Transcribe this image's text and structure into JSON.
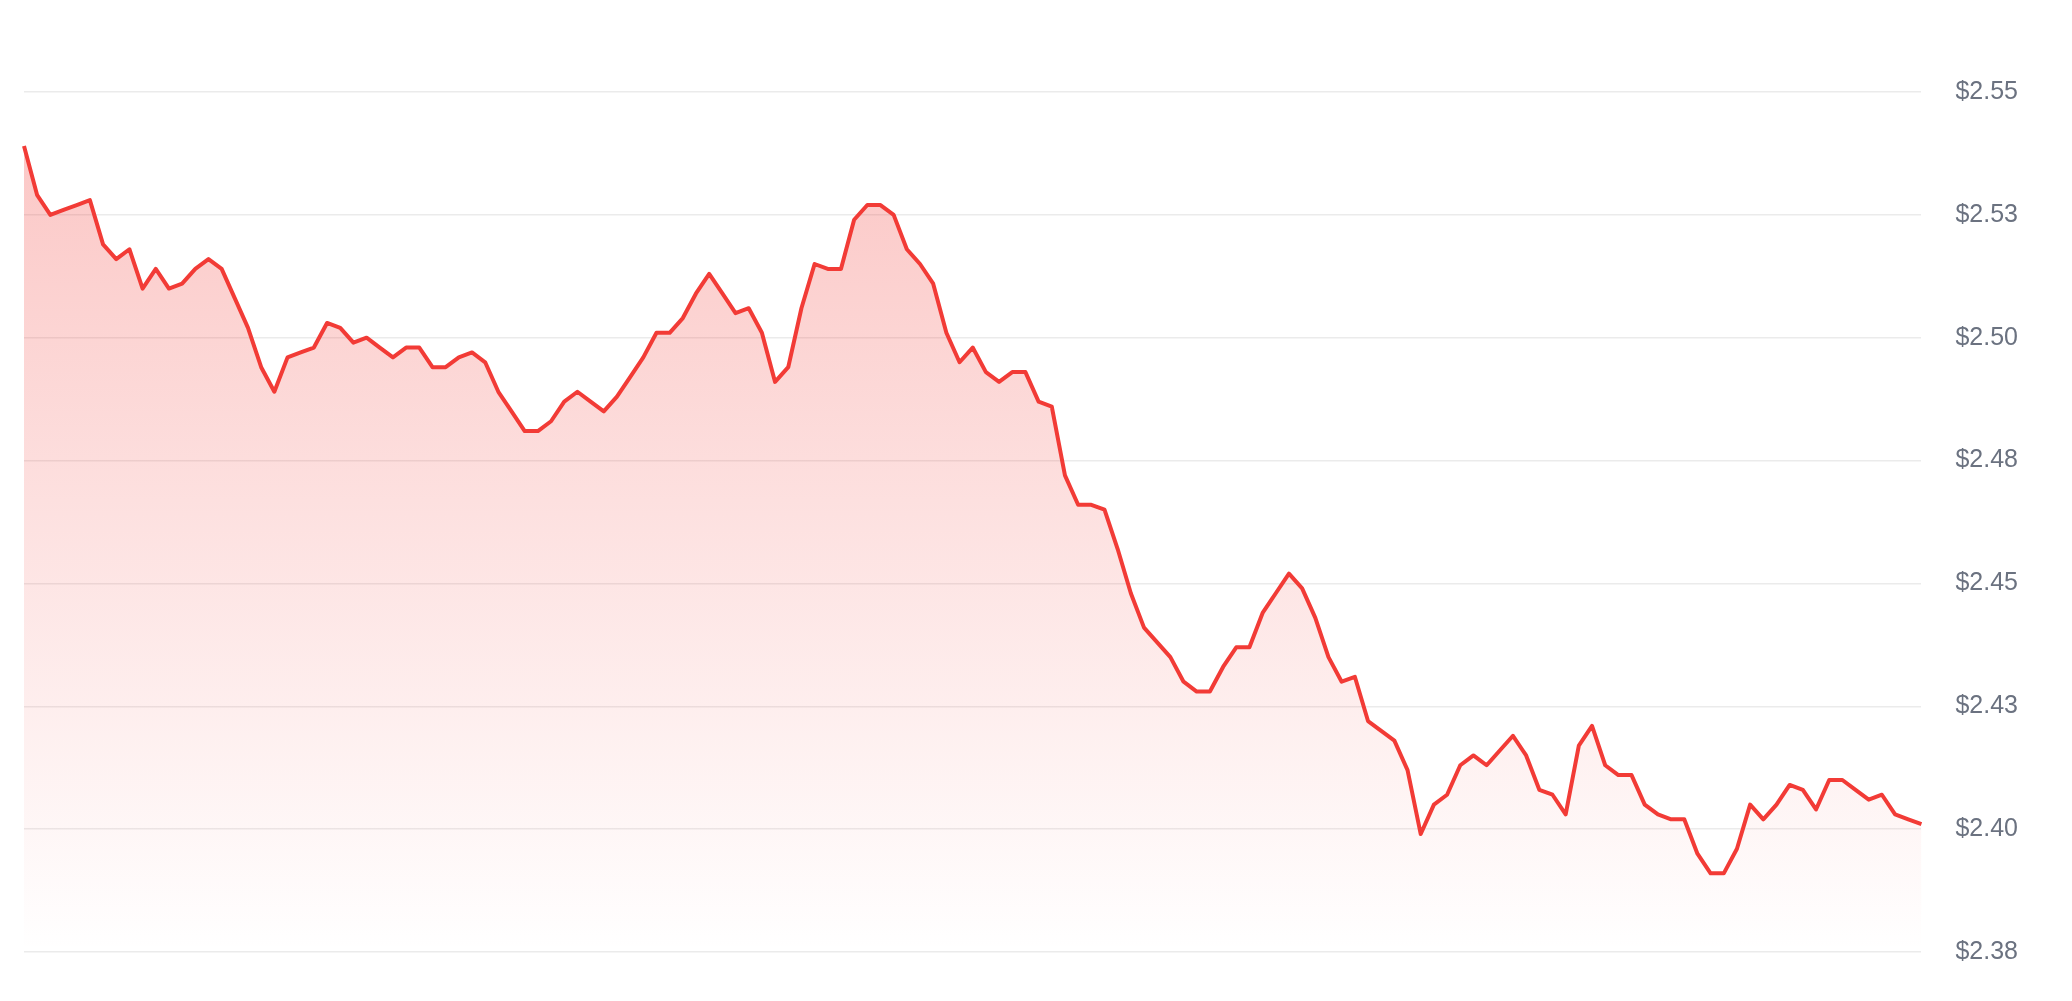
{
  "chart_data": {
    "type": "area",
    "categories": [
      null,
      null,
      null,
      null,
      null,
      null,
      null,
      null,
      null,
      null,
      null,
      null,
      null,
      null,
      null,
      null,
      null,
      null,
      null,
      null,
      null,
      null,
      null,
      null,
      null,
      null,
      null,
      null,
      null,
      null,
      null,
      null,
      null,
      null,
      null,
      null,
      null,
      null,
      null,
      null,
      null,
      null,
      null,
      null,
      null,
      null,
      null,
      null,
      null,
      null,
      null,
      null,
      null,
      null,
      null,
      null,
      null,
      null,
      null,
      null,
      null,
      null,
      null,
      null,
      null,
      null,
      null,
      null,
      null,
      null,
      null,
      null,
      null,
      null,
      null,
      null,
      null,
      null,
      null,
      null,
      null,
      null,
      null,
      null,
      null,
      null,
      null,
      null,
      null,
      null,
      null,
      null,
      null,
      null,
      null,
      null,
      null,
      null,
      null,
      null,
      null,
      null,
      null,
      null,
      null,
      null,
      null,
      null,
      null,
      null,
      null,
      null,
      null,
      null,
      null,
      null,
      null,
      null,
      null,
      null,
      null,
      null,
      null,
      null,
      null,
      null,
      null,
      null,
      null,
      null,
      null,
      null,
      null,
      null,
      null,
      null,
      null,
      null,
      null,
      null,
      null,
      null,
      null,
      null,
      null
    ],
    "series": [
      {
        "color": "#f23b36",
        "values": [
          2.539,
          2.529,
          2.525,
          2.526,
          2.527,
          2.528,
          2.519,
          2.516,
          2.518,
          2.51,
          2.514,
          2.51,
          2.511,
          2.514,
          2.516,
          2.514,
          2.508,
          2.502,
          2.494,
          2.489,
          2.496,
          2.497,
          2.498,
          2.503,
          2.502,
          2.499,
          2.5,
          2.498,
          2.496,
          2.498,
          2.498,
          2.494,
          2.494,
          2.496,
          2.497,
          2.495,
          2.489,
          2.485,
          2.481,
          2.481,
          2.483,
          2.487,
          2.489,
          2.487,
          2.485,
          2.488,
          2.492,
          2.496,
          2.501,
          2.501,
          2.504,
          2.509,
          2.513,
          2.509,
          2.505,
          2.506,
          2.501,
          2.491,
          2.494,
          2.506,
          2.515,
          2.514,
          2.514,
          2.524,
          2.527,
          2.527,
          2.525,
          2.518,
          2.515,
          2.511,
          2.501,
          2.495,
          2.498,
          2.493,
          2.491,
          2.493,
          2.493,
          2.487,
          2.486,
          2.472,
          2.466,
          2.466,
          2.465,
          2.457,
          2.448,
          2.441,
          2.438,
          2.435,
          2.43,
          2.428,
          2.428,
          2.433,
          2.437,
          2.437,
          2.444,
          2.448,
          2.452,
          2.449,
          2.443,
          2.435,
          2.43,
          2.431,
          2.422,
          2.42,
          2.418,
          2.412,
          2.399,
          2.405,
          2.407,
          2.413,
          2.415,
          2.413,
          2.416,
          2.419,
          2.415,
          2.408,
          2.407,
          2.403,
          2.417,
          2.421,
          2.413,
          2.411,
          2.411,
          2.405,
          2.403,
          2.402,
          2.402,
          2.395,
          2.391,
          2.391,
          2.396,
          2.405,
          2.402,
          2.405,
          2.409,
          2.408,
          2.404,
          2.41,
          2.41,
          2.408,
          2.406,
          2.407,
          2.403,
          2.402,
          2.401
        ]
      }
    ],
    "ylim": [
      2.375,
      2.55
    ],
    "yticks": [
      {
        "value": 2.375,
        "label": "$2.38"
      },
      {
        "value": 2.4,
        "label": "$2.40"
      },
      {
        "value": 2.425,
        "label": "$2.43"
      },
      {
        "value": 2.45,
        "label": "$2.45"
      },
      {
        "value": 2.475,
        "label": "$2.48"
      },
      {
        "value": 2.5,
        "label": "$2.50"
      },
      {
        "value": 2.525,
        "label": "$2.53"
      },
      {
        "value": 2.55,
        "label": "$2.55"
      }
    ],
    "grid": "y",
    "tick_labels": "y"
  }
}
